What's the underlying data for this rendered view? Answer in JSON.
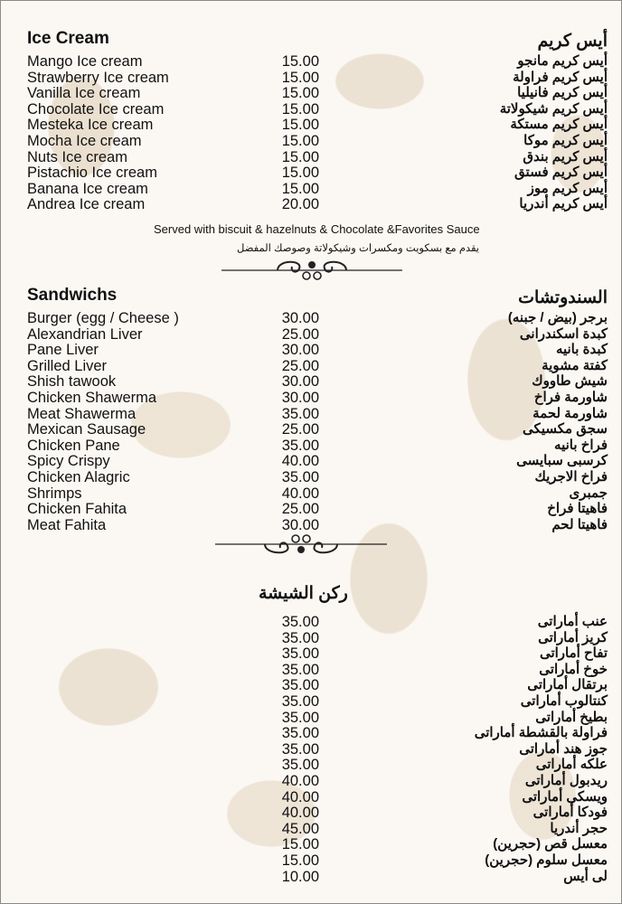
{
  "ice_cream": {
    "title_en": "Ice Cream",
    "title_ar": "أيس كريم",
    "items": [
      {
        "en": "Mango Ice cream",
        "price": "15.00",
        "ar": "أيس كريم مانجو"
      },
      {
        "en": "Strawberry Ice cream",
        "price": "15.00",
        "ar": "أيس كريم فراولة"
      },
      {
        "en": "Vanilla Ice cream",
        "price": "15.00",
        "ar": "أيس كريم فانيليا"
      },
      {
        "en": "Chocolate Ice cream",
        "price": "15.00",
        "ar": "أيس كريم شيكولاتة"
      },
      {
        "en": "Mesteka Ice cream",
        "price": "15.00",
        "ar": "أيس كريم مستكة"
      },
      {
        "en": "Mocha Ice cream",
        "price": "15.00",
        "ar": "أيس كريم موكا"
      },
      {
        "en": "Nuts Ice cream",
        "price": "15.00",
        "ar": "أيس كريم بندق"
      },
      {
        "en": "Pistachio Ice cream",
        "price": "15.00",
        "ar": "أيس كريم فستق"
      },
      {
        "en": "Banana Ice cream",
        "price": "15.00",
        "ar": "أيس كريم موز"
      },
      {
        "en": "Andrea Ice cream",
        "price": "20.00",
        "ar": "أيس كريم أندريا"
      }
    ],
    "note_en": "Served with biscuit & hazelnuts & Chocolate &Favorites Sauce",
    "note_ar": "يقدم مع بسكويت ومكسرات وشيكولاتة وصوصك المفضل"
  },
  "sandwiches": {
    "title_en": "Sandwichs",
    "title_ar": "السندوتشات",
    "items": [
      {
        "en": "Burger (egg / Cheese )",
        "price": "30.00",
        "ar": "برجر (بيض / جبنه)"
      },
      {
        "en": "Alexandrian Liver",
        "price": "25.00",
        "ar": "كبدة اسكندرانى"
      },
      {
        "en": "Pane Liver",
        "price": "30.00",
        "ar": "كبدة بانيه"
      },
      {
        "en": "Grilled Liver",
        "price": "25.00",
        "ar": "كفتة مشوية"
      },
      {
        "en": "Shish tawook",
        "price": "30.00",
        "ar": "شيش طاووك"
      },
      {
        "en": "Chicken Shawerma",
        "price": "30.00",
        "ar": "شاورمة فراخ"
      },
      {
        "en": "Meat Shawerma",
        "price": "35.00",
        "ar": "شاورمة لحمة"
      },
      {
        "en": "Mexican Sausage",
        "price": "25.00",
        "ar": "سجق مكسيكى"
      },
      {
        "en": "Chicken Pane",
        "price": "35.00",
        "ar": "فراخ بانيه"
      },
      {
        "en": "Spicy Crispy",
        "price": "40.00",
        "ar": "كرسبى سبايسى"
      },
      {
        "en": "Chicken Alagric",
        "price": "35.00",
        "ar": "فراخ الاجريك"
      },
      {
        "en": "Shrimps",
        "price": "40.00",
        "ar": "جمبرى"
      },
      {
        "en": "Chicken Fahita",
        "price": "25.00",
        "ar": "فاهيتا فراخ"
      },
      {
        "en": "Meat Fahita",
        "price": "30.00",
        "ar": "فاهيتا لحم"
      }
    ]
  },
  "shisha": {
    "title_ar": "ركن الشيشة",
    "items": [
      {
        "en": "",
        "price": "35.00",
        "ar": "عنب أماراتى"
      },
      {
        "en": "",
        "price": "35.00",
        "ar": "كريز أماراتى"
      },
      {
        "en": "",
        "price": "35.00",
        "ar": "تفاح أماراتى"
      },
      {
        "en": "",
        "price": "35.00",
        "ar": "خوخ أماراتى"
      },
      {
        "en": "",
        "price": "35.00",
        "ar": "برتقال أماراتى"
      },
      {
        "en": "",
        "price": "35.00",
        "ar": "كنتالوب أماراتى"
      },
      {
        "en": "",
        "price": "35.00",
        "ar": "بطيخ أماراتى"
      },
      {
        "en": "",
        "price": "35.00",
        "ar": "فراولة بالقشطة أماراتى"
      },
      {
        "en": "",
        "price": "35.00",
        "ar": "جوز هند أماراتى"
      },
      {
        "en": "",
        "price": "35.00",
        "ar": "علكه أماراتى"
      },
      {
        "en": "",
        "price": "40.00",
        "ar": "ريدبول أماراتى"
      },
      {
        "en": "",
        "price": "40.00",
        "ar": "ويسكى أماراتى"
      },
      {
        "en": "",
        "price": "40.00",
        "ar": "فودكا أماراتى"
      },
      {
        "en": "",
        "price": "45.00",
        "ar": "حجر أندريا"
      },
      {
        "en": "",
        "price": "15.00",
        "ar": "معسل قص (حجرين)"
      },
      {
        "en": "",
        "price": "15.00",
        "ar": "معسل سلوم (حجرين)"
      },
      {
        "en": "",
        "price": "10.00",
        "ar": "لى أيس"
      }
    ]
  },
  "colors": {
    "background": "#fbf8f3",
    "pattern": "#decdb4",
    "text": "#111111"
  },
  "icons": [
    "ornament-divider-icon"
  ]
}
